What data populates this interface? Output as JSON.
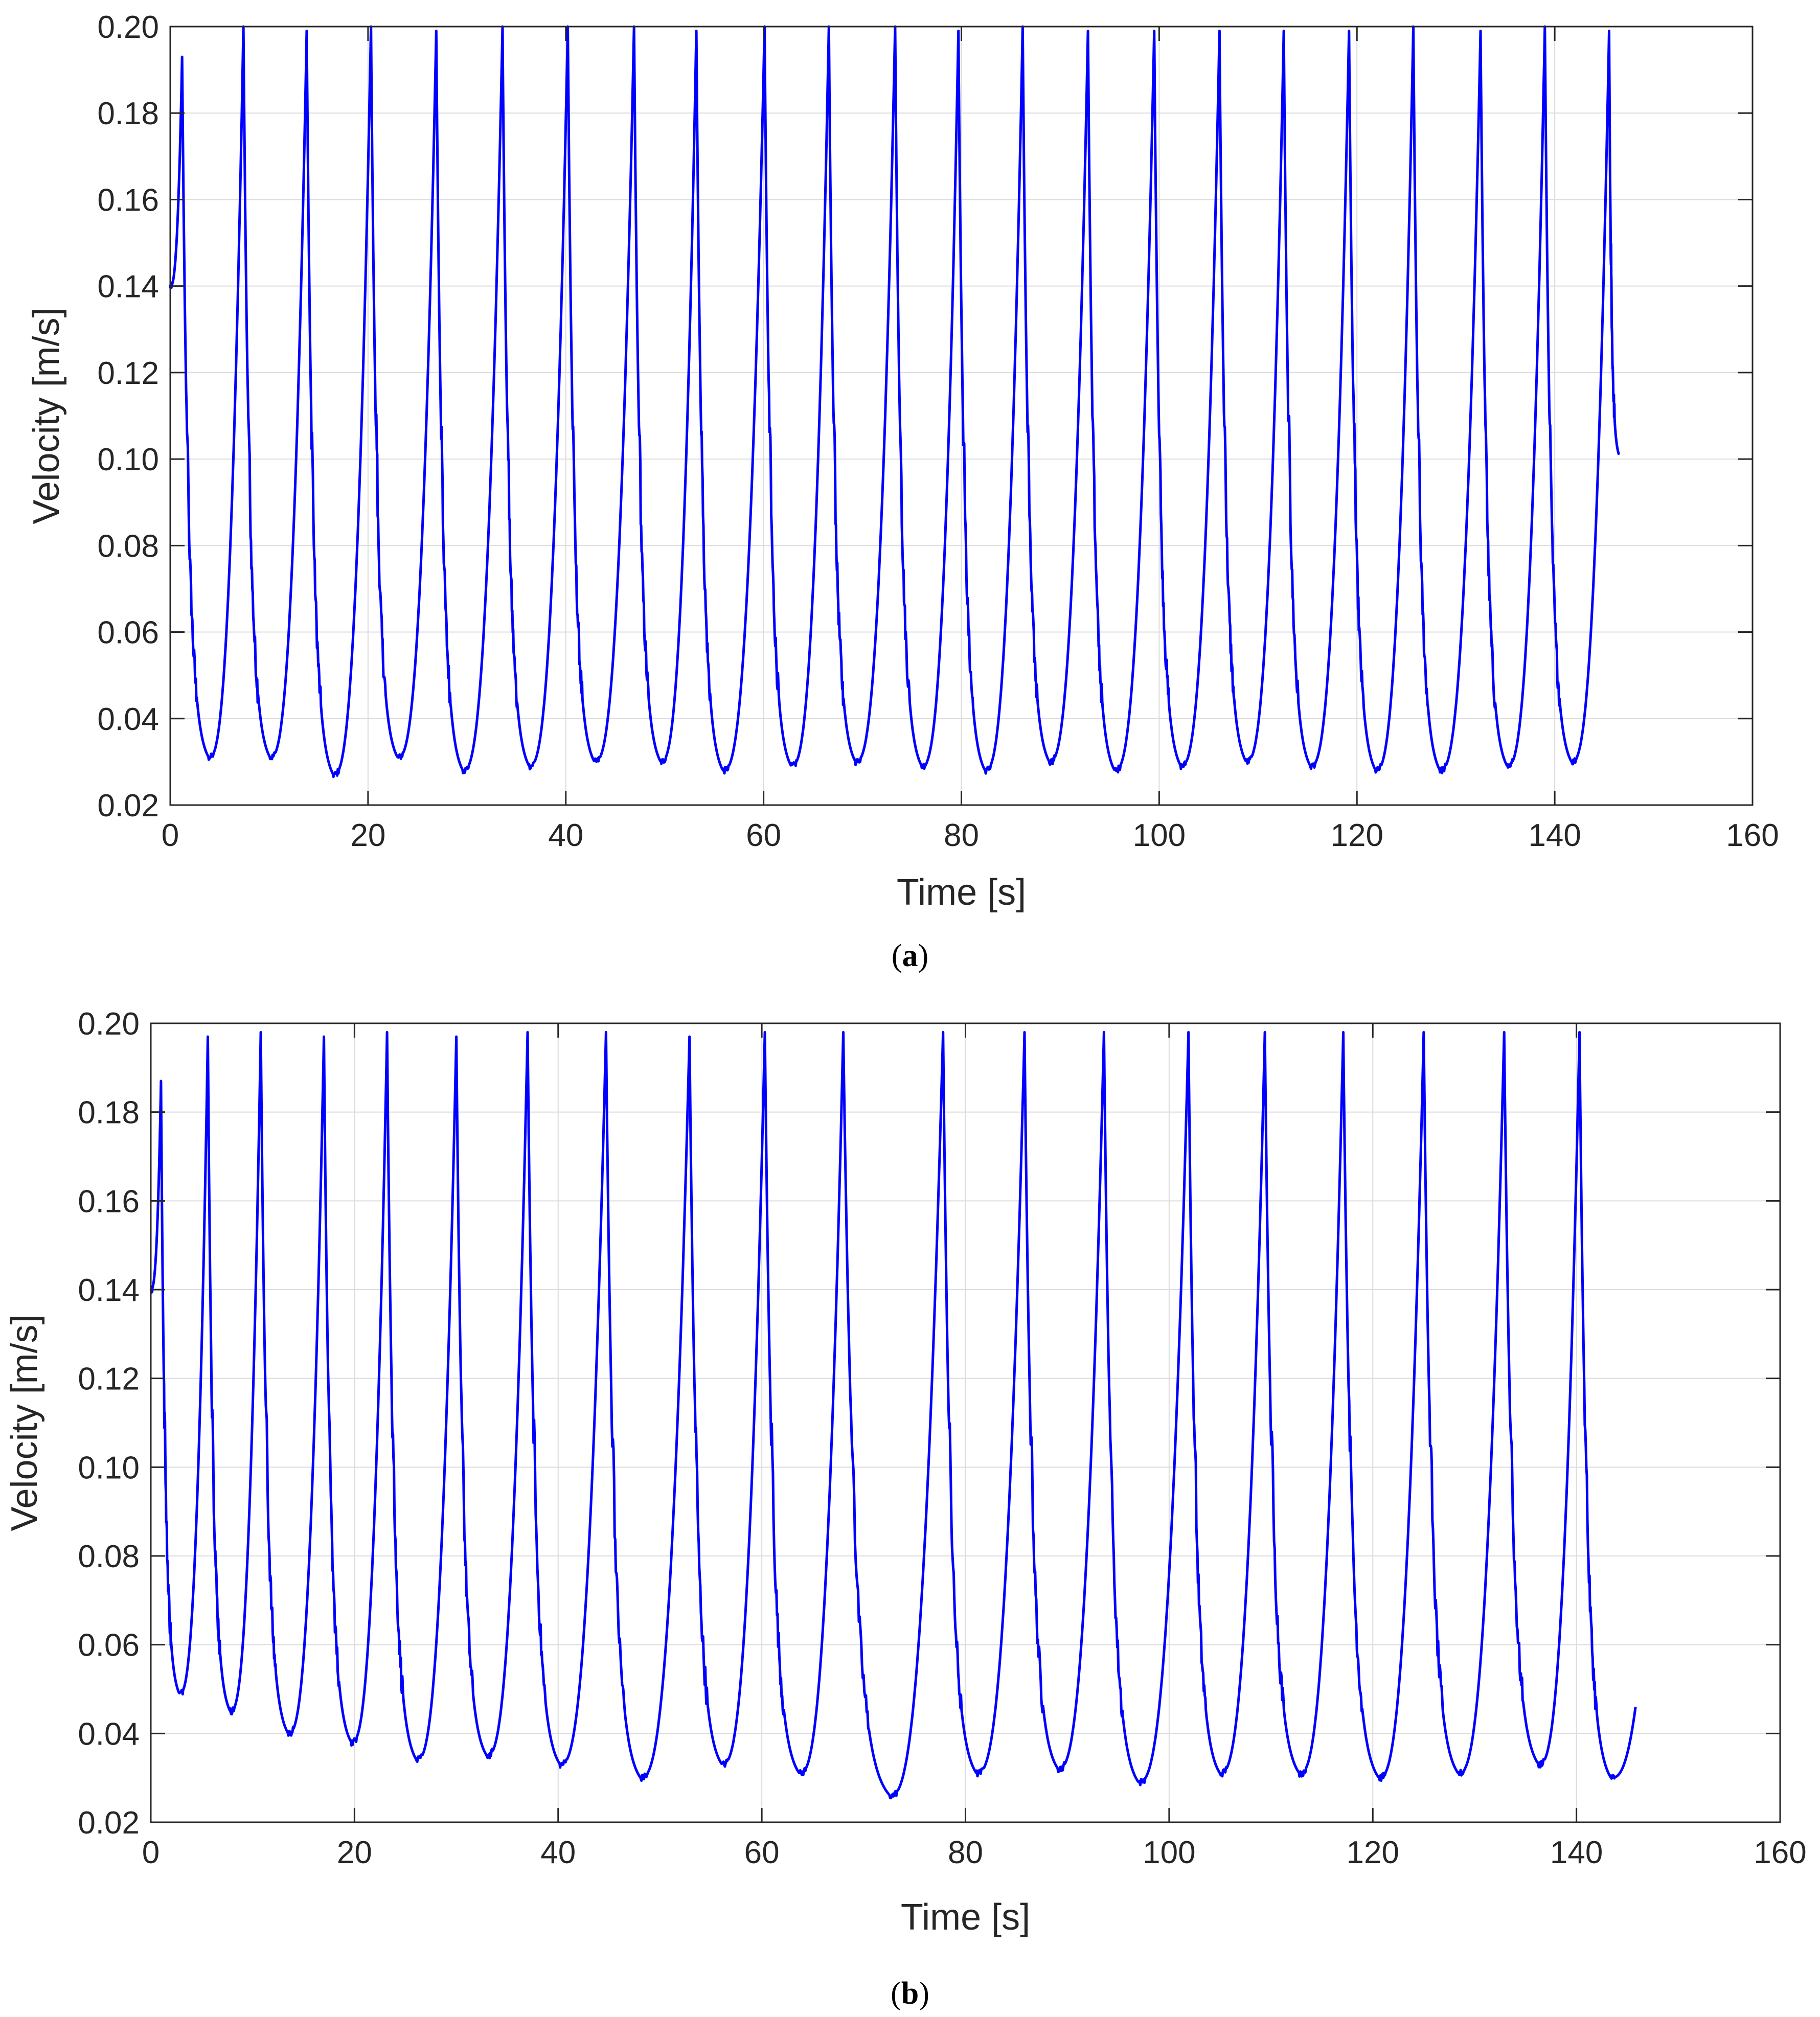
{
  "chart_data": [
    {
      "type": "line",
      "panel_label": "a",
      "xlabel": "Time [s]",
      "ylabel": "Velocity [m/s]",
      "xlim": [
        0,
        160
      ],
      "ylim": [
        0.02,
        0.2
      ],
      "xticks": [
        "0",
        "20",
        "40",
        "60",
        "80",
        "100",
        "120",
        "140",
        "160"
      ],
      "yticks": [
        "0.02",
        "0.04",
        "0.06",
        "0.08",
        "0.10",
        "0.12",
        "0.14",
        "0.16",
        "0.18",
        "0.20"
      ],
      "grid": true,
      "color": "#0000ff",
      "start": {
        "t": 0,
        "v": 0.14
      },
      "end": {
        "t": 146.5,
        "v": 0.101
      },
      "peaks": [
        {
          "t": 1.2,
          "v": 0.193
        },
        {
          "t": 7.4,
          "v": 0.2
        },
        {
          "t": 13.8,
          "v": 0.199
        },
        {
          "t": 20.3,
          "v": 0.2
        },
        {
          "t": 26.9,
          "v": 0.199
        },
        {
          "t": 33.6,
          "v": 0.2
        },
        {
          "t": 40.2,
          "v": 0.2
        },
        {
          "t": 46.9,
          "v": 0.2
        },
        {
          "t": 53.2,
          "v": 0.199
        },
        {
          "t": 60.1,
          "v": 0.2
        },
        {
          "t": 66.6,
          "v": 0.2
        },
        {
          "t": 73.3,
          "v": 0.2
        },
        {
          "t": 79.7,
          "v": 0.199
        },
        {
          "t": 86.2,
          "v": 0.2
        },
        {
          "t": 92.8,
          "v": 0.199
        },
        {
          "t": 99.5,
          "v": 0.199
        },
        {
          "t": 106.1,
          "v": 0.199
        },
        {
          "t": 112.6,
          "v": 0.199
        },
        {
          "t": 119.2,
          "v": 0.199
        },
        {
          "t": 125.7,
          "v": 0.2
        },
        {
          "t": 132.5,
          "v": 0.199
        },
        {
          "t": 139.0,
          "v": 0.2
        },
        {
          "t": 145.5,
          "v": 0.199
        }
      ],
      "troughs": [
        {
          "t": 3.9,
          "v": 0.031
        },
        {
          "t": 10.1,
          "v": 0.031
        },
        {
          "t": 16.5,
          "v": 0.027
        },
        {
          "t": 23.0,
          "v": 0.031
        },
        {
          "t": 29.6,
          "v": 0.028
        },
        {
          "t": 36.3,
          "v": 0.029
        },
        {
          "t": 42.9,
          "v": 0.03
        },
        {
          "t": 49.6,
          "v": 0.03
        },
        {
          "t": 55.9,
          "v": 0.028
        },
        {
          "t": 62.8,
          "v": 0.029
        },
        {
          "t": 69.3,
          "v": 0.03
        },
        {
          "t": 76.0,
          "v": 0.029
        },
        {
          "t": 82.4,
          "v": 0.028
        },
        {
          "t": 88.9,
          "v": 0.03
        },
        {
          "t": 95.5,
          "v": 0.028
        },
        {
          "t": 102.2,
          "v": 0.029
        },
        {
          "t": 108.8,
          "v": 0.03
        },
        {
          "t": 115.3,
          "v": 0.029
        },
        {
          "t": 121.9,
          "v": 0.028
        },
        {
          "t": 128.4,
          "v": 0.028
        },
        {
          "t": 135.2,
          "v": 0.029
        },
        {
          "t": 141.7,
          "v": 0.03
        }
      ]
    },
    {
      "type": "line",
      "panel_label": "b",
      "xlabel": "Time [s]",
      "ylabel": "Velocity [m/s]",
      "xlim": [
        0,
        160
      ],
      "ylim": [
        0.02,
        0.2
      ],
      "xticks": [
        "0",
        "20",
        "40",
        "60",
        "80",
        "100",
        "120",
        "140",
        "160"
      ],
      "yticks": [
        "0.02",
        "0.04",
        "0.06",
        "0.08",
        "0.10",
        "0.12",
        "0.14",
        "0.16",
        "0.18",
        "0.20"
      ],
      "grid": true,
      "color": "#0000ff",
      "start": {
        "t": 0,
        "v": 0.14
      },
      "end": {
        "t": 145.8,
        "v": 0.046
      },
      "peaks": [
        {
          "t": 1.0,
          "v": 0.187
        },
        {
          "t": 5.6,
          "v": 0.197
        },
        {
          "t": 10.8,
          "v": 0.198
        },
        {
          "t": 17.0,
          "v": 0.197
        },
        {
          "t": 23.2,
          "v": 0.198
        },
        {
          "t": 30.0,
          "v": 0.197
        },
        {
          "t": 37.0,
          "v": 0.198
        },
        {
          "t": 44.7,
          "v": 0.198
        },
        {
          "t": 52.9,
          "v": 0.197
        },
        {
          "t": 60.3,
          "v": 0.198
        },
        {
          "t": 68.0,
          "v": 0.198
        },
        {
          "t": 77.8,
          "v": 0.198
        },
        {
          "t": 85.8,
          "v": 0.198
        },
        {
          "t": 93.6,
          "v": 0.198
        },
        {
          "t": 101.9,
          "v": 0.198
        },
        {
          "t": 109.4,
          "v": 0.198
        },
        {
          "t": 117.1,
          "v": 0.198
        },
        {
          "t": 125.0,
          "v": 0.198
        },
        {
          "t": 132.9,
          "v": 0.198
        },
        {
          "t": 140.3,
          "v": 0.198
        }
      ],
      "troughs": [
        {
          "t": 2.8,
          "v": 0.049
        },
        {
          "t": 7.8,
          "v": 0.045
        },
        {
          "t": 13.5,
          "v": 0.04
        },
        {
          "t": 19.7,
          "v": 0.038
        },
        {
          "t": 26.1,
          "v": 0.034
        },
        {
          "t": 33.0,
          "v": 0.035
        },
        {
          "t": 40.2,
          "v": 0.033
        },
        {
          "t": 48.1,
          "v": 0.03
        },
        {
          "t": 56.1,
          "v": 0.033
        },
        {
          "t": 63.7,
          "v": 0.031
        },
        {
          "t": 72.6,
          "v": 0.026
        },
        {
          "t": 81.1,
          "v": 0.031
        },
        {
          "t": 89.1,
          "v": 0.032
        },
        {
          "t": 97.0,
          "v": 0.029
        },
        {
          "t": 105.0,
          "v": 0.031
        },
        {
          "t": 112.8,
          "v": 0.031
        },
        {
          "t": 120.6,
          "v": 0.03
        },
        {
          "t": 128.4,
          "v": 0.031
        },
        {
          "t": 136.3,
          "v": 0.033
        },
        {
          "t": 143.4,
          "v": 0.03
        }
      ]
    }
  ]
}
